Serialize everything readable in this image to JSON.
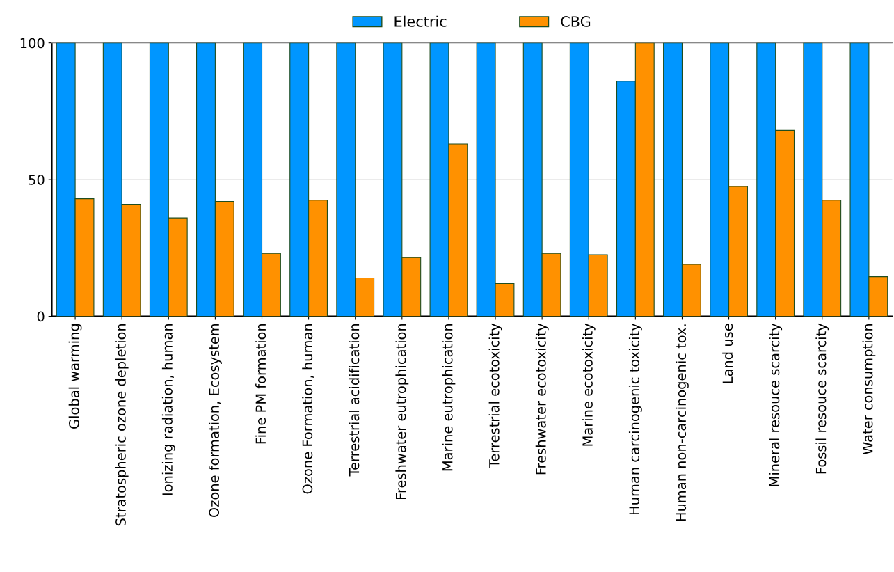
{
  "chart_data": {
    "type": "bar",
    "categories": [
      "Global warming",
      "Stratospheric ozone depletion",
      "Ionizing radiation, human",
      "Ozone formation, Ecosystem",
      "Fine PM formation",
      "Ozone Formation, human",
      "Terrestrial acidification",
      "Freshwater eutrophication",
      "Marine eutrophication",
      "Terrestrial ecotoxicity",
      "Freshwater ecotoxicity",
      "Marine ecotoxicity",
      "Human carcinogenic toxicity",
      "Human non-carcinogenic tox.",
      "Land use",
      "Mineral resouce scarcity",
      "Fossil resouce scarcity",
      "Water consumption"
    ],
    "series": [
      {
        "name": "Electric",
        "color": "#0096ff",
        "values": [
          100,
          100,
          100,
          100,
          100,
          100,
          100,
          100,
          100,
          100,
          100,
          100,
          86,
          100,
          100,
          100,
          100,
          100
        ]
      },
      {
        "name": "CBG",
        "color": "#ff9100",
        "values": [
          43,
          41,
          36,
          42,
          23,
          42.5,
          14,
          21.5,
          63,
          12,
          23,
          22.5,
          100,
          19,
          47.5,
          68,
          42.5,
          14.5
        ]
      }
    ],
    "ylim": [
      0,
      100
    ],
    "yticks": [
      0,
      50,
      100
    ],
    "grid": "y",
    "legend": "top"
  }
}
